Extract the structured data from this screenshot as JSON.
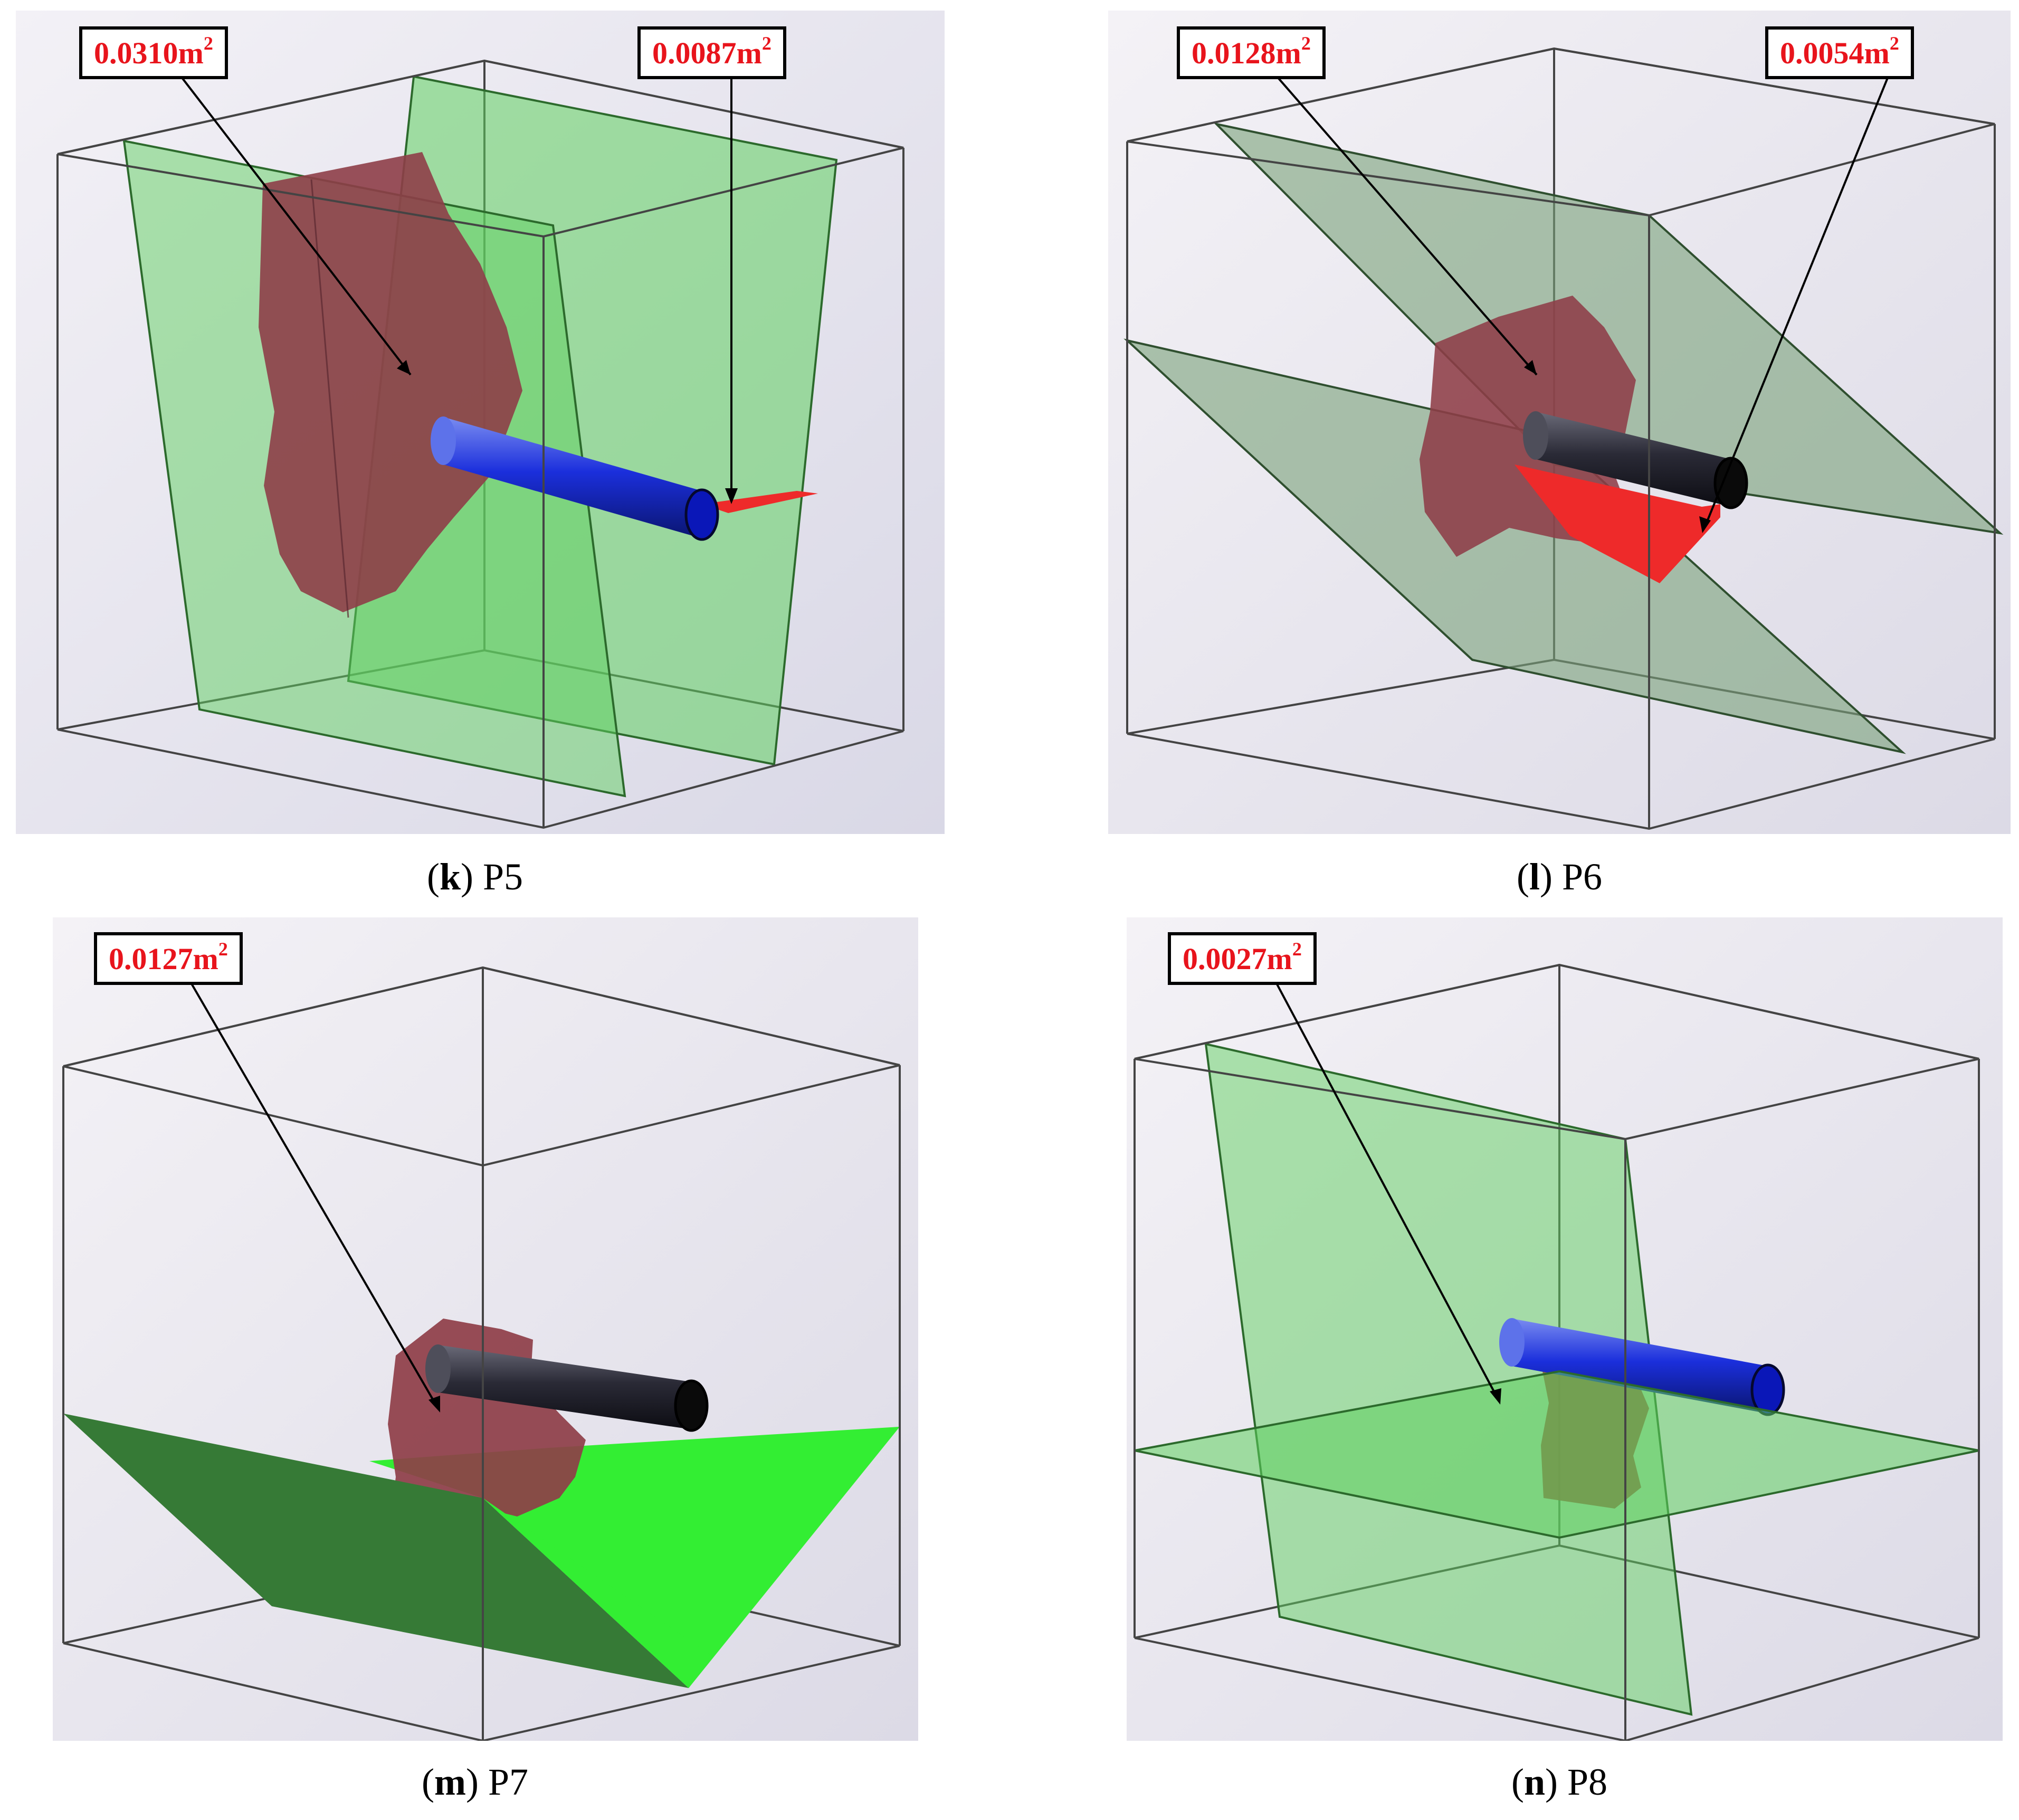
{
  "colors": {
    "fracture_green": "#5fcf5f",
    "bright_green": "#33ee33",
    "dark_green": "#367a36",
    "rock_patch": "#8e3e48",
    "red_area": "#ee2a2a",
    "pipe_blue": "#1a2fd8",
    "pipe_dark": "#2a2a36",
    "callout_text": "#e8141c"
  },
  "panels": [
    {
      "id": "k",
      "caption_letter": "k",
      "caption_text": "P5",
      "callouts": [
        {
          "value": "0.0310m",
          "unit_exp": "2"
        },
        {
          "value": "0.0087m",
          "unit_exp": "2"
        }
      ]
    },
    {
      "id": "l",
      "caption_letter": "l",
      "caption_text": "P6",
      "callouts": [
        {
          "value": "0.0128m",
          "unit_exp": "2"
        },
        {
          "value": "0.0054m",
          "unit_exp": "2"
        }
      ]
    },
    {
      "id": "m",
      "caption_letter": "m",
      "caption_text": "P7",
      "callouts": [
        {
          "value": "0.0127m",
          "unit_exp": "2"
        }
      ]
    },
    {
      "id": "n",
      "caption_letter": "n",
      "caption_text": "P8",
      "callouts": [
        {
          "value": "0.0027m",
          "unit_exp": "2"
        }
      ]
    }
  ]
}
